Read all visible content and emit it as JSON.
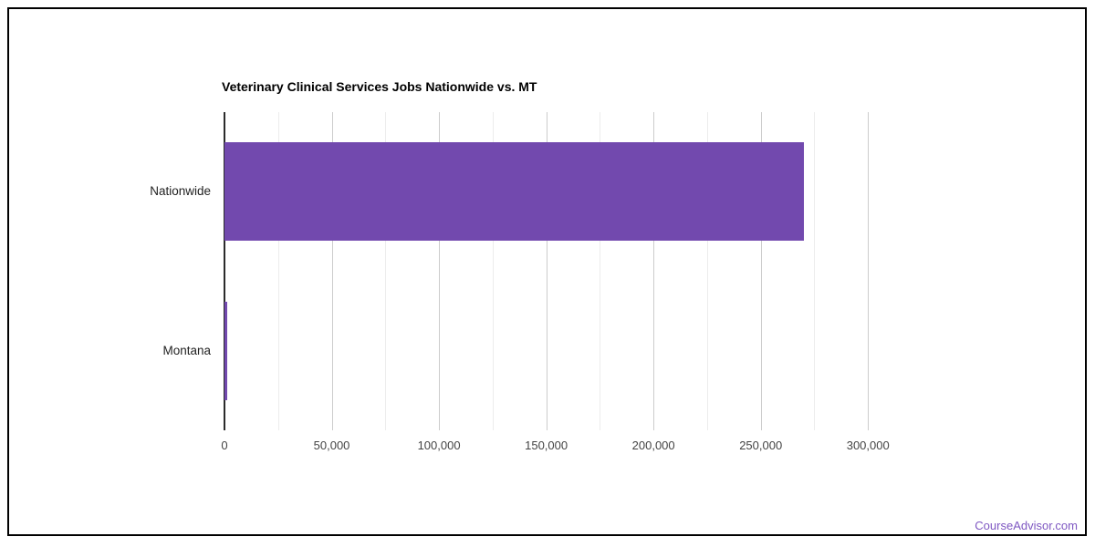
{
  "chart_data": {
    "type": "bar",
    "orientation": "horizontal",
    "title": "Veterinary Clinical Services Jobs Nationwide vs. MT",
    "categories": [
      "Nationwide",
      "Montana"
    ],
    "values": [
      270000,
      1300
    ],
    "xlabel": "",
    "ylabel": "",
    "xlim": [
      0,
      325000
    ],
    "x_ticks": [
      {
        "value": 0,
        "label": "0"
      },
      {
        "value": 50000,
        "label": "50,000"
      },
      {
        "value": 100000,
        "label": "100,000"
      },
      {
        "value": 150000,
        "label": "150,000"
      },
      {
        "value": 200000,
        "label": "200,000"
      },
      {
        "value": 250000,
        "label": "250,000"
      },
      {
        "value": 300000,
        "label": "300,000"
      }
    ],
    "x_minor_ticks": [
      25000,
      75000,
      125000,
      175000,
      225000,
      275000
    ],
    "grid": true,
    "legend": "none",
    "colors": {
      "bar": "#7249ae",
      "baseline": "#2b2b2b",
      "grid_major": "#cccccc",
      "grid_minor": "#ececec",
      "tick_label": "#444444",
      "category_label": "#222222",
      "title": "#000000"
    }
  },
  "watermark": {
    "text": "CourseAdvisor.com",
    "color": "#7e57c2"
  },
  "frame": {
    "border_color": "#000000"
  }
}
